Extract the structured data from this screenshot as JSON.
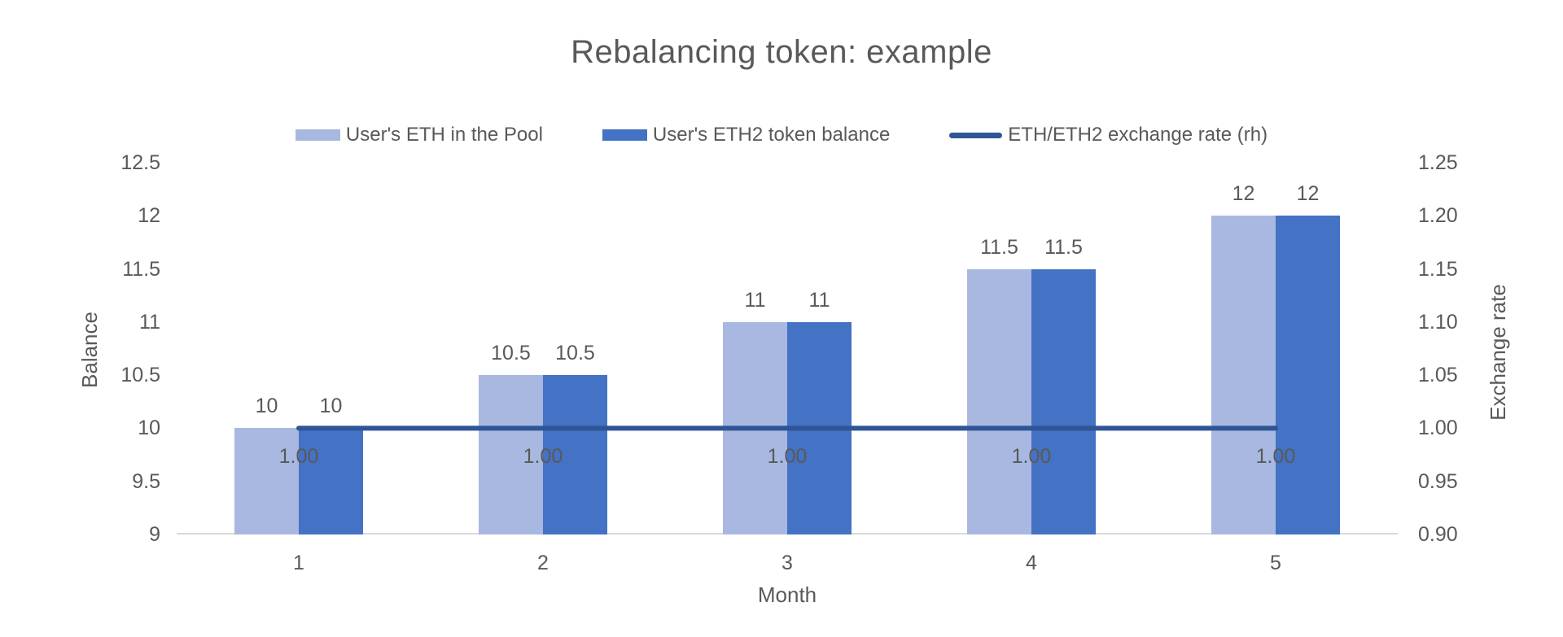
{
  "chart_data": {
    "type": "bar",
    "title": "Rebalancing token: example",
    "xlabel": "Month",
    "categories": [
      "1",
      "2",
      "3",
      "4",
      "5"
    ],
    "left_axis": {
      "label": "Balance",
      "min": 9,
      "max": 12.5,
      "ticks": [
        "9",
        "9.5",
        "10",
        "10.5",
        "11",
        "11.5",
        "12",
        "12.5"
      ]
    },
    "right_axis": {
      "label": "Exchange rate",
      "min": 0.9,
      "max": 1.25,
      "ticks": [
        "0.90",
        "0.95",
        "1.00",
        "1.05",
        "1.10",
        "1.15",
        "1.20",
        "1.25"
      ]
    },
    "series": [
      {
        "name": "User's ETH in the Pool",
        "type": "bar",
        "axis": "left",
        "color": "#a9b8e0",
        "values": [
          10,
          10.5,
          11,
          11.5,
          12
        ],
        "labels": [
          "10",
          "10.5",
          "11",
          "11.5",
          "12"
        ]
      },
      {
        "name": "User's ETH2 token balance",
        "type": "bar",
        "axis": "left",
        "color": "#4472c4",
        "values": [
          10,
          10.5,
          11,
          11.5,
          12
        ],
        "labels": [
          "10",
          "10.5",
          "11",
          "11.5",
          "12"
        ]
      },
      {
        "name": "ETH/ETH2 exchange rate (rh)",
        "type": "line",
        "axis": "right",
        "color": "#2f5597",
        "values": [
          1.0,
          1.0,
          1.0,
          1.0,
          1.0
        ],
        "labels": [
          "1.00",
          "1.00",
          "1.00",
          "1.00",
          "1.00"
        ]
      }
    ],
    "legend_position": "top",
    "grid": "off",
    "colors": {
      "text": "#595959",
      "axis_line": "#d9d9d9"
    }
  }
}
